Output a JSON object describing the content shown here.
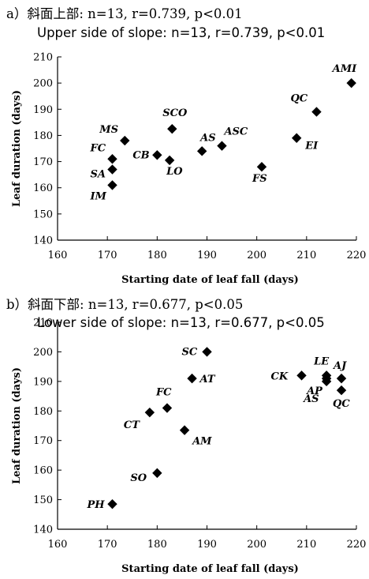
{
  "panels": [
    {
      "title": "a）斜面上部: n=13, r=0.739, p<0.01",
      "subtitle": "Upper side of slope: n=13, r=0.739, p<0.01"
    },
    {
      "title": "b）斜面下部: n=13, r=0.677, p<0.05",
      "subtitle": "Lower side of slope: n=13, r=0.677, p<0.05"
    }
  ],
  "chart_data": [
    {
      "type": "scatter",
      "xlabel": "Starting date of leaf fall (days)",
      "ylabel": "Leaf duration (days)",
      "xlim": [
        160,
        220
      ],
      "ylim": [
        140,
        210
      ],
      "xticks": [
        160,
        170,
        180,
        190,
        200,
        210,
        220
      ],
      "yticks": [
        140,
        150,
        160,
        170,
        180,
        190,
        200,
        210
      ],
      "marker_color": "#000000",
      "points": [
        {
          "label": "AMI",
          "x": 219,
          "y": 200
        },
        {
          "label": "QC",
          "x": 212,
          "y": 189
        },
        {
          "label": "EI",
          "x": 208,
          "y": 179
        },
        {
          "label": "MS",
          "x": 173.5,
          "y": 178
        },
        {
          "label": "SCO",
          "x": 183,
          "y": 182.5
        },
        {
          "label": "AS",
          "x": 189,
          "y": 174
        },
        {
          "label": "ASC",
          "x": 193,
          "y": 176
        },
        {
          "label": "CB",
          "x": 180,
          "y": 172.5
        },
        {
          "label": "LO",
          "x": 182.5,
          "y": 170.5
        },
        {
          "label": "FC",
          "x": 171,
          "y": 171
        },
        {
          "label": "SA",
          "x": 171,
          "y": 167
        },
        {
          "label": "IM",
          "x": 171,
          "y": 161
        },
        {
          "label": "FS",
          "x": 201,
          "y": 168
        }
      ]
    },
    {
      "type": "scatter",
      "xlabel": "Starting date of leaf fall (days)",
      "ylabel": "Leaf duration (days)",
      "xlim": [
        160,
        220
      ],
      "ylim": [
        140,
        210
      ],
      "xticks": [
        160,
        170,
        180,
        190,
        200,
        210,
        220
      ],
      "yticks": [
        140,
        150,
        160,
        170,
        180,
        190,
        200,
        210
      ],
      "marker_color": "#000000",
      "points": [
        {
          "label": "SC",
          "x": 190,
          "y": 200
        },
        {
          "label": "AT",
          "x": 187,
          "y": 191
        },
        {
          "label": "FC",
          "x": 182,
          "y": 181
        },
        {
          "label": "CT",
          "x": 178.5,
          "y": 179.5
        },
        {
          "label": "AM",
          "x": 185.5,
          "y": 173.5
        },
        {
          "label": "SO",
          "x": 180,
          "y": 159
        },
        {
          "label": "PH",
          "x": 171,
          "y": 148.5
        },
        {
          "label": "CK",
          "x": 209,
          "y": 192
        },
        {
          "label": "LE",
          "x": 214,
          "y": 192
        },
        {
          "label": "AJ",
          "x": 217,
          "y": 191
        },
        {
          "label": "AP",
          "x": 214,
          "y": 190
        },
        {
          "label": "AS",
          "x": 214,
          "y": 191
        },
        {
          "label": "QC",
          "x": 217,
          "y": 187
        }
      ]
    }
  ]
}
